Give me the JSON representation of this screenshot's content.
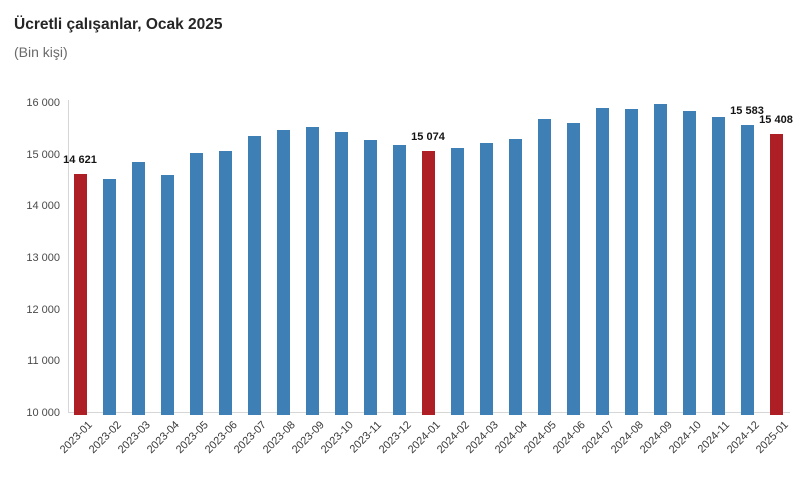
{
  "chart_data": {
    "type": "bar",
    "title": "Ücretli çalışanlar, Ocak 2025",
    "subtitle": "(Bin kişi)",
    "unit": "Bin kişi",
    "categories": [
      "2023-01",
      "2023-02",
      "2023-03",
      "2023-04",
      "2023-05",
      "2023-06",
      "2023-07",
      "2023-08",
      "2023-09",
      "2023-10",
      "2023-11",
      "2023-12",
      "2024-01",
      "2024-02",
      "2024-03",
      "2024-04",
      "2024-05",
      "2024-06",
      "2024-07",
      "2024-08",
      "2024-09",
      "2024-10",
      "2024-11",
      "2024-12",
      "2025-01"
    ],
    "values": [
      14621,
      14520,
      14850,
      14615,
      15030,
      15070,
      15360,
      15480,
      15540,
      15430,
      15290,
      15190,
      15074,
      15130,
      15230,
      15300,
      15690,
      15610,
      15900,
      15890,
      15990,
      15840,
      15720,
      15583,
      15408
    ],
    "highlight_indices": [
      0,
      12,
      24
    ],
    "highlighted_categories": [
      "2023-01",
      "2024-01",
      "2025-01"
    ],
    "data_labels": [
      {
        "index": 0,
        "text": "14 621"
      },
      {
        "index": 12,
        "text": "15 074"
      },
      {
        "index": 23,
        "text": "15 583"
      },
      {
        "index": 24,
        "text": "15 408"
      }
    ],
    "ylim": [
      10000,
      16000
    ],
    "y_ticks": [
      {
        "value": 16000,
        "label": "16 000"
      },
      {
        "value": 15000,
        "label": "15 000"
      },
      {
        "value": 14000,
        "label": "14 000"
      },
      {
        "value": 13000,
        "label": "13 000"
      },
      {
        "value": 12000,
        "label": "12 000"
      },
      {
        "value": 11000,
        "label": "11 000"
      },
      {
        "value": 10000,
        "label": "10 000"
      }
    ],
    "grid": false,
    "legend": false,
    "colors": {
      "bar": "#3E80B6",
      "bar_highlight": "#AE1E25",
      "axis_line": "#D6D6D6",
      "title_text": "#262626",
      "subtitle_text": "#6A6A6A",
      "axis_tick_text": "#4A4A4A",
      "value_label_text": "#141414"
    }
  }
}
